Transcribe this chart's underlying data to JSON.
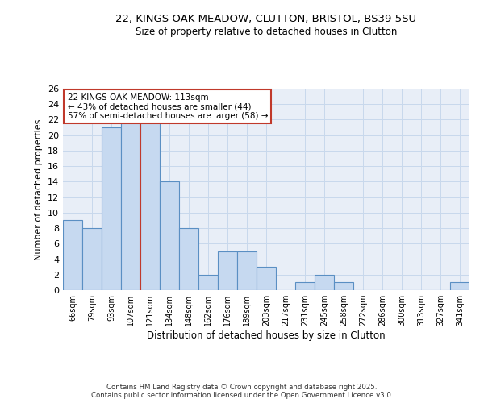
{
  "title_line1": "22, KINGS OAK MEADOW, CLUTTON, BRISTOL, BS39 5SU",
  "title_line2": "Size of property relative to detached houses in Clutton",
  "xlabel": "Distribution of detached houses by size in Clutton",
  "ylabel": "Number of detached properties",
  "bar_labels": [
    "66sqm",
    "79sqm",
    "93sqm",
    "107sqm",
    "121sqm",
    "134sqm",
    "148sqm",
    "162sqm",
    "176sqm",
    "189sqm",
    "203sqm",
    "217sqm",
    "231sqm",
    "245sqm",
    "258sqm",
    "272sqm",
    "286sqm",
    "300sqm",
    "313sqm",
    "327sqm",
    "341sqm"
  ],
  "bar_values": [
    9,
    8,
    21,
    22,
    22,
    14,
    8,
    2,
    5,
    5,
    3,
    0,
    1,
    2,
    1,
    0,
    0,
    0,
    0,
    0,
    1
  ],
  "bar_color": "#c6d9f0",
  "bar_edge_color": "#5a8fc3",
  "grid_color": "#c8d8ec",
  "background_color": "#e8eef7",
  "vline_x": 3.5,
  "vline_color": "#c0392b",
  "annotation_text": "22 KINGS OAK MEADOW: 113sqm\n← 43% of detached houses are smaller (44)\n57% of semi-detached houses are larger (58) →",
  "annotation_box_edge": "#c0392b",
  "ylim": [
    0,
    26
  ],
  "yticks": [
    0,
    2,
    4,
    6,
    8,
    10,
    12,
    14,
    16,
    18,
    20,
    22,
    24,
    26
  ],
  "footer_line1": "Contains HM Land Registry data © Crown copyright and database right 2025.",
  "footer_line2": "Contains public sector information licensed under the Open Government Licence v3.0."
}
